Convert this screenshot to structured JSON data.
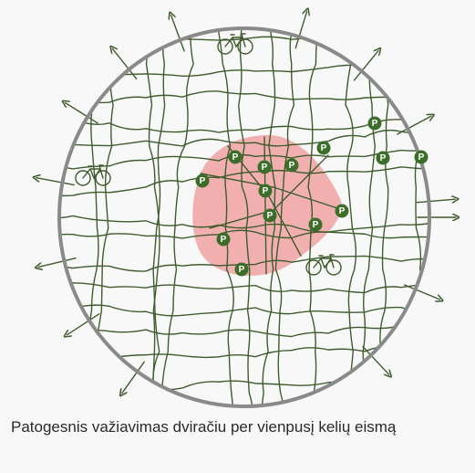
{
  "map": {
    "parking_label": "P"
  },
  "caption": "Patogesnis važiavimas dviračiu per vienpusį kelių eismą"
}
